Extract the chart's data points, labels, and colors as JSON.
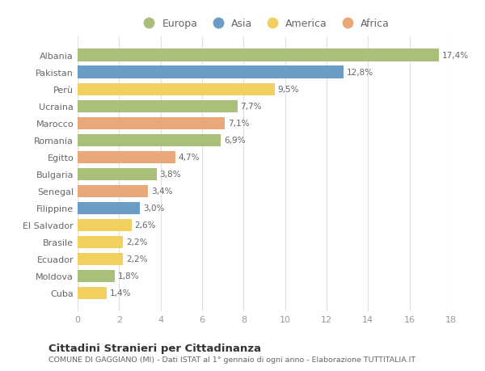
{
  "categories": [
    "Albania",
    "Pakistan",
    "Perù",
    "Ucraina",
    "Marocco",
    "Romania",
    "Egitto",
    "Bulgaria",
    "Senegal",
    "Filippine",
    "El Salvador",
    "Brasile",
    "Ecuador",
    "Moldova",
    "Cuba"
  ],
  "values": [
    17.4,
    12.8,
    9.5,
    7.7,
    7.1,
    6.9,
    4.7,
    3.8,
    3.4,
    3.0,
    2.6,
    2.2,
    2.2,
    1.8,
    1.4
  ],
  "labels": [
    "17,4%",
    "12,8%",
    "9,5%",
    "7,7%",
    "7,1%",
    "6,9%",
    "4,7%",
    "3,8%",
    "3,4%",
    "3,0%",
    "2,6%",
    "2,2%",
    "2,2%",
    "1,8%",
    "1,4%"
  ],
  "colors": [
    "#a8c07a",
    "#6b9dc4",
    "#f2d060",
    "#a8c07a",
    "#e8a87a",
    "#a8c07a",
    "#e8a87a",
    "#a8c07a",
    "#e8a87a",
    "#6b9dc4",
    "#f2d060",
    "#f2d060",
    "#f2d060",
    "#a8c07a",
    "#f2d060"
  ],
  "legend": {
    "Europa": "#a8c07a",
    "Asia": "#6b9dc4",
    "America": "#f2d060",
    "Africa": "#e8a87a"
  },
  "xlim": [
    0,
    18
  ],
  "xticks": [
    0,
    2,
    4,
    6,
    8,
    10,
    12,
    14,
    16,
    18
  ],
  "title": "Cittadini Stranieri per Cittadinanza",
  "subtitle": "COMUNE DI GAGGIANO (MI) - Dati ISTAT al 1° gennaio di ogni anno - Elaborazione TUTTITALIA.IT",
  "bg_color": "#ffffff",
  "grid_color": "#e0e0e0"
}
